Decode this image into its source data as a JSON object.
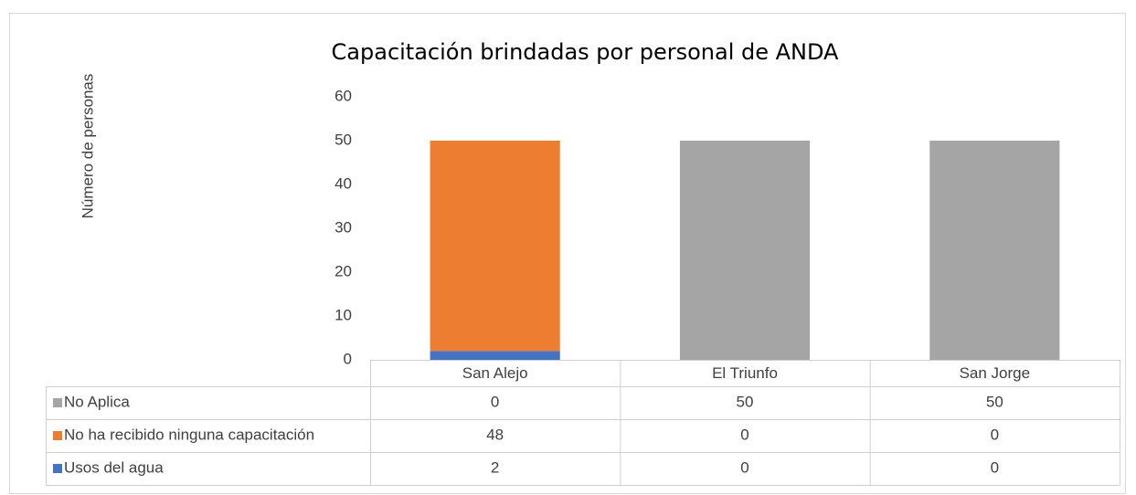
{
  "chart_data": {
    "type": "bar",
    "stacked": true,
    "title": "Capacitación brindadas por personal de ANDA",
    "y_label": "Número de personas",
    "categories": [
      "San Alejo",
      "El Triunfo",
      "San Jorge"
    ],
    "series": [
      {
        "name": "No Aplica",
        "color": "#a5a5a5",
        "values": [
          0,
          50,
          50
        ]
      },
      {
        "name": "No ha recibido ninguna capacitación",
        "color": "#ed7d31",
        "values": [
          48,
          0,
          0
        ]
      },
      {
        "name": "Usos del agua",
        "color": "#4472c4",
        "values": [
          2,
          0,
          0
        ]
      }
    ],
    "ylim": [
      0,
      60
    ],
    "yticks": [
      0,
      10,
      20,
      30,
      40,
      50,
      60
    ],
    "grid": false,
    "data_table": true
  }
}
